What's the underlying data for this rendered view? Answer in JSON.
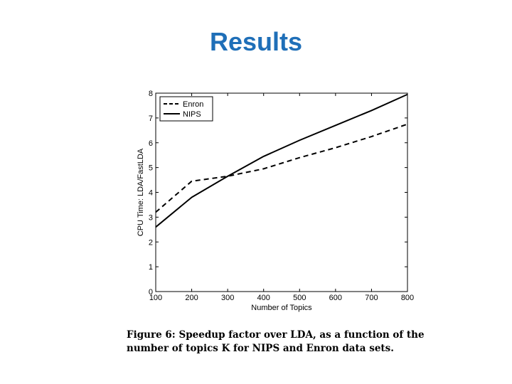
{
  "slide": {
    "title": "Results"
  },
  "caption": {
    "text": "Figure 6: Speedup factor over LDA, as a function of the number of topics K for NIPS and Enron data sets."
  },
  "chart_data": {
    "type": "line",
    "xlabel": "Number of Topics",
    "ylabel": "CPU Time: LDA/FastLDA",
    "xlim": [
      100,
      800
    ],
    "ylim": [
      0,
      8
    ],
    "xticks": [
      100,
      200,
      300,
      400,
      500,
      600,
      700,
      800
    ],
    "yticks": [
      0,
      1,
      2,
      3,
      4,
      5,
      6,
      7,
      8
    ],
    "grid": false,
    "legend_position": "top-left",
    "series": [
      {
        "name": "Enron",
        "style": "dashed",
        "color": "#000000",
        "x": [
          100,
          200,
          300,
          400,
          500,
          600,
          700,
          800
        ],
        "y": [
          3.2,
          4.45,
          4.65,
          4.95,
          5.4,
          5.8,
          6.25,
          6.75
        ]
      },
      {
        "name": "NIPS",
        "style": "solid",
        "color": "#000000",
        "x": [
          100,
          200,
          300,
          400,
          500,
          600,
          700,
          800
        ],
        "y": [
          2.6,
          3.8,
          4.65,
          5.45,
          6.1,
          6.7,
          7.3,
          7.95
        ]
      }
    ]
  }
}
